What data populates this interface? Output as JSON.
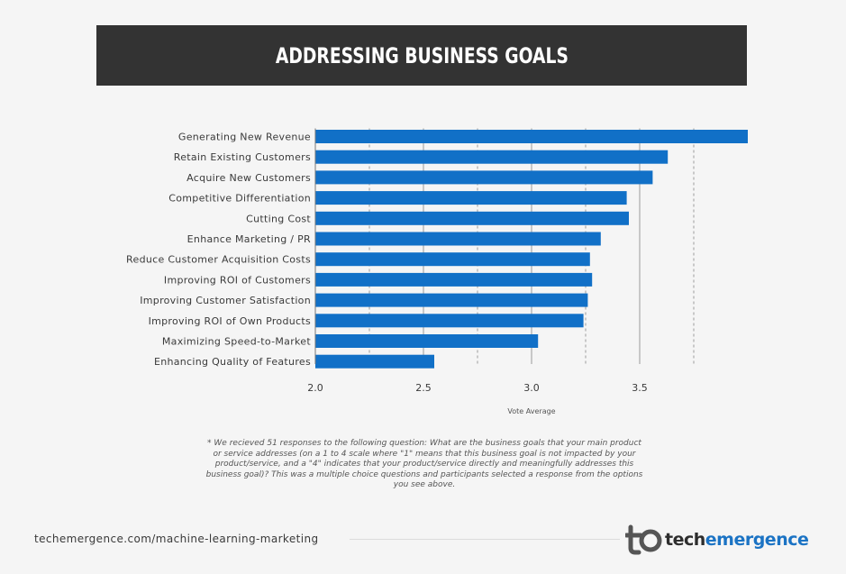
{
  "colors": {
    "background": "#f5f5f5",
    "banner": "#333333",
    "bar": "#1170c7",
    "label_text": "#3a3a3a",
    "logo_blue": "#1b73c4"
  },
  "header": {
    "title": "ADDRESSING BUSINESS GOALS"
  },
  "chart_data": {
    "type": "bar",
    "orientation": "horizontal",
    "title": "ADDRESSING BUSINESS GOALS",
    "xlabel": "Vote Average",
    "ylabel": "",
    "categories": [
      "Generating New Revenue",
      "Retain Existing Customers",
      "Acquire New Customers",
      "Competitive Differentiation",
      "Cutting Cost",
      "Enhance Marketing / PR",
      "Reduce Customer Acquisition Costs",
      "Improving ROI of Customers",
      "Improving Customer Satisfaction",
      "Improving ROI of Own Products",
      "Maximizing Speed-to-Market",
      "Enhancing Quality of Features"
    ],
    "values": [
      4.0,
      3.63,
      3.56,
      3.44,
      3.45,
      3.32,
      3.27,
      3.28,
      3.26,
      3.24,
      3.03,
      2.55
    ],
    "xlim": [
      2.0,
      4.0
    ],
    "xticks": [
      "2.0",
      "2.5",
      "3.0",
      "3.5"
    ],
    "grid": "vertical dashed lines at 0.25 intervals"
  },
  "footnote": {
    "text": "* We recieved 51 responses to the following question: What are the business goals that your main product or service addresses (on a 1 to 4 scale where \"1\" means that this business goal is not impacted by your product/service, and a \"4\" indicates that your product/service directly and meaningfully addresses this business goal)? This was a multiple choice questions and participants selected a response from the options you see above."
  },
  "footer": {
    "url": "techemergence.com/machine-learning-marketing",
    "logo_part1": "tech",
    "logo_part2": "emergence"
  },
  "icons": {
    "logo": "techemergence-logo-icon"
  }
}
